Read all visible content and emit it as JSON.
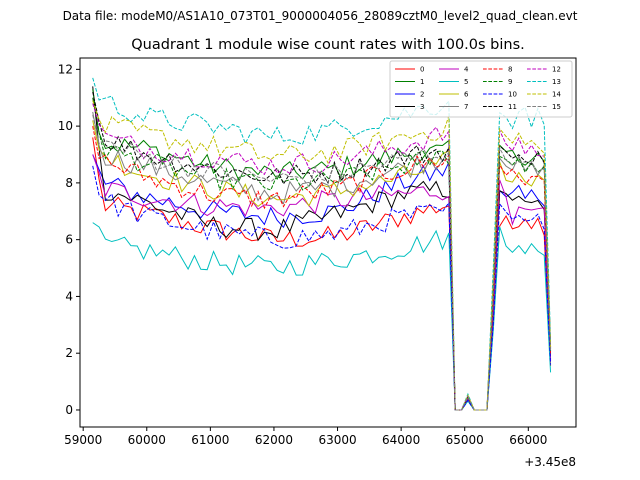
{
  "suptitle": "Data file: modeM0/AS1A10_073T01_9000004056_28089cztM0_level2_quad_clean.evt",
  "chart_data": {
    "type": "line",
    "title": "Quadrant 1 module wise count rates with 100.0s bins.",
    "xlabel": "",
    "ylabel": "",
    "x_offset": 345000000,
    "x_offset_label": "+3.45e8",
    "xlim": [
      58950,
      66750
    ],
    "ylim": [
      -0.6,
      12.4
    ],
    "xticks": [
      59000,
      60000,
      61000,
      62000,
      63000,
      64000,
      65000,
      66000
    ],
    "xtick_labels": [
      "59000",
      "60000",
      "61000",
      "62000",
      "63000",
      "64000",
      "65000",
      "66000"
    ],
    "yticks": [
      0,
      2,
      4,
      6,
      8,
      10,
      12
    ],
    "ytick_labels": [
      "0",
      "2",
      "4",
      "6",
      "8",
      "10",
      "12"
    ],
    "x_start": 59150,
    "x_step": 100,
    "n_points": 73,
    "legend_location": "upper right",
    "series": [
      {
        "name": "0",
        "color": "#ff0000",
        "style": "solid",
        "anchors": [
          [
            59150,
            9.6
          ],
          [
            59300,
            7.2
          ],
          [
            60000,
            6.9
          ],
          [
            61000,
            6.4
          ],
          [
            62000,
            6.0
          ],
          [
            63000,
            6.1
          ],
          [
            64000,
            6.8
          ],
          [
            64800,
            7.3
          ],
          [
            64900,
            7.0
          ]
        ],
        "after": [
          6.5,
          6.7,
          6.4,
          6.6,
          6.8,
          6.5,
          6.7,
          6.3,
          6.2
        ]
      },
      {
        "name": "1",
        "color": "#008000",
        "style": "solid",
        "anchors": [
          [
            59150,
            11.0
          ],
          [
            59300,
            9.4
          ],
          [
            60000,
            9.2
          ],
          [
            61000,
            8.6
          ],
          [
            62000,
            8.3
          ],
          [
            63000,
            8.5
          ],
          [
            64000,
            9.0
          ],
          [
            64800,
            9.1
          ],
          [
            64900,
            9.4
          ]
        ],
        "after": [
          9.3,
          9.0,
          9.2,
          8.9,
          8.7,
          8.8,
          9.0,
          8.7,
          8.8
        ]
      },
      {
        "name": "2",
        "color": "#0000ff",
        "style": "solid",
        "anchors": [
          [
            59150,
            9.0
          ],
          [
            59300,
            8.0
          ],
          [
            60000,
            7.5
          ],
          [
            61000,
            7.0
          ],
          [
            62000,
            6.8
          ],
          [
            63000,
            7.0
          ],
          [
            64000,
            8.0
          ],
          [
            64800,
            8.5
          ],
          [
            64900,
            8.0
          ]
        ],
        "after": [
          7.8,
          7.5,
          7.6,
          7.9,
          7.4,
          7.7,
          7.5,
          7.3,
          7.2
        ]
      },
      {
        "name": "3",
        "color": "#000000",
        "style": "solid",
        "anchors": [
          [
            59150,
            11.4
          ],
          [
            59300,
            7.8
          ],
          [
            60000,
            7.3
          ],
          [
            61000,
            6.5
          ],
          [
            62000,
            6.3
          ],
          [
            63000,
            6.9
          ],
          [
            64000,
            7.6
          ],
          [
            64800,
            7.8
          ],
          [
            64900,
            8.0
          ]
        ],
        "after": [
          7.8,
          7.5,
          7.3,
          7.6,
          7.4,
          7.2,
          7.3,
          7.0,
          7.0
        ]
      },
      {
        "name": "4",
        "color": "#bf00bf",
        "style": "solid",
        "anchors": [
          [
            59150,
            9.0
          ],
          [
            59300,
            7.8
          ],
          [
            60000,
            7.5
          ],
          [
            61000,
            7.2
          ],
          [
            62000,
            7.1
          ],
          [
            63000,
            7.4
          ],
          [
            64000,
            7.6
          ],
          [
            64800,
            7.8
          ],
          [
            64900,
            8.0
          ]
        ],
        "after": [
          8.0,
          7.5,
          6.6,
          7.3,
          7.2,
          6.9,
          7.0,
          7.1,
          6.9
        ]
      },
      {
        "name": "5",
        "color": "#00bfbf",
        "style": "solid",
        "anchors": [
          [
            59150,
            6.6
          ],
          [
            59300,
            5.8
          ],
          [
            60000,
            5.6
          ],
          [
            61000,
            5.2
          ],
          [
            62000,
            5.0
          ],
          [
            63000,
            5.3
          ],
          [
            64000,
            5.7
          ],
          [
            64800,
            6.1
          ],
          [
            64900,
            6.3
          ]
        ],
        "after": [
          6.4,
          5.8,
          5.7,
          5.9,
          5.6,
          5.8,
          5.5,
          5.4,
          5.3
        ]
      },
      {
        "name": "6",
        "color": "#bfbf00",
        "style": "solid",
        "anchors": [
          [
            59150,
            10.2
          ],
          [
            59300,
            9.0
          ],
          [
            60000,
            8.3
          ],
          [
            61000,
            7.8
          ],
          [
            62000,
            7.4
          ],
          [
            63000,
            7.7
          ],
          [
            64000,
            8.2
          ],
          [
            64800,
            8.8
          ],
          [
            64900,
            9.0
          ]
        ],
        "after": [
          8.6,
          8.2,
          8.0,
          8.3,
          8.1,
          7.9,
          8.4,
          8.0,
          7.9
        ]
      },
      {
        "name": "7",
        "color": "#808080",
        "style": "solid",
        "anchors": [
          [
            59150,
            10.5
          ],
          [
            59300,
            9.0
          ],
          [
            60000,
            8.6
          ],
          [
            61000,
            8.0
          ],
          [
            62000,
            7.6
          ],
          [
            63000,
            7.9
          ],
          [
            64000,
            8.5
          ],
          [
            64800,
            9.0
          ],
          [
            64900,
            9.3
          ]
        ],
        "after": [
          9.0,
          8.7,
          8.5,
          8.8,
          8.4,
          8.6,
          8.3,
          8.5,
          8.2
        ]
      },
      {
        "name": "8",
        "color": "#ff0000",
        "style": "dashed",
        "anchors": [
          [
            59150,
            10.0
          ],
          [
            59300,
            8.8
          ],
          [
            60000,
            8.2
          ],
          [
            61000,
            7.6
          ],
          [
            62000,
            7.4
          ],
          [
            63000,
            7.8
          ],
          [
            64000,
            8.5
          ],
          [
            64800,
            8.9
          ],
          [
            64900,
            9.0
          ]
        ],
        "after": [
          8.6,
          8.3,
          8.5,
          8.2,
          8.0,
          8.3,
          8.1,
          8.0,
          7.9
        ]
      },
      {
        "name": "9",
        "color": "#008000",
        "style": "dashed",
        "anchors": [
          [
            59150,
            11.3
          ],
          [
            59300,
            9.2
          ],
          [
            60000,
            8.7
          ],
          [
            61000,
            8.2
          ],
          [
            62000,
            7.9
          ],
          [
            63000,
            8.1
          ],
          [
            64000,
            8.6
          ],
          [
            64800,
            9.0
          ],
          [
            64900,
            9.2
          ]
        ],
        "after": [
          9.0,
          8.8,
          8.6,
          8.9,
          8.5,
          8.7,
          8.4,
          8.6,
          8.3
        ]
      },
      {
        "name": "10",
        "color": "#0000ff",
        "style": "dashed",
        "anchors": [
          [
            59150,
            8.6
          ],
          [
            59300,
            7.4
          ],
          [
            60000,
            6.8
          ],
          [
            61000,
            6.3
          ],
          [
            62000,
            6.0
          ],
          [
            63000,
            6.2
          ],
          [
            64000,
            6.8
          ],
          [
            64800,
            7.0
          ],
          [
            64900,
            6.8
          ]
        ],
        "after": [
          7.2,
          6.9,
          6.6,
          7.0,
          6.8,
          6.7,
          6.9,
          6.5,
          6.4
        ]
      },
      {
        "name": "11",
        "color": "#000000",
        "style": "dashed",
        "anchors": [
          [
            59150,
            11.2
          ],
          [
            59300,
            9.6
          ],
          [
            60000,
            9.0
          ],
          [
            61000,
            8.5
          ],
          [
            62000,
            8.2
          ],
          [
            63000,
            8.4
          ],
          [
            64000,
            8.9
          ],
          [
            64800,
            9.2
          ],
          [
            64900,
            9.4
          ]
        ],
        "after": [
          9.3,
          9.0,
          8.8,
          9.1,
          8.9,
          8.7,
          9.0,
          8.8,
          8.6
        ]
      },
      {
        "name": "12",
        "color": "#bf00bf",
        "style": "dashed",
        "anchors": [
          [
            59150,
            10.8
          ],
          [
            59300,
            9.6
          ],
          [
            60000,
            9.2
          ],
          [
            61000,
            8.9
          ],
          [
            62000,
            8.6
          ],
          [
            63000,
            8.8
          ],
          [
            64000,
            9.3
          ],
          [
            64800,
            9.8
          ],
          [
            64900,
            10.0
          ]
        ],
        "after": [
          9.7,
          9.4,
          9.2,
          9.5,
          9.1,
          9.3,
          9.0,
          8.9,
          8.8
        ]
      },
      {
        "name": "13",
        "color": "#00bfbf",
        "style": "dashed",
        "anchors": [
          [
            59150,
            11.7
          ],
          [
            59300,
            10.9
          ],
          [
            60000,
            10.3
          ],
          [
            61000,
            10.0
          ],
          [
            62000,
            9.6
          ],
          [
            63000,
            9.9
          ],
          [
            64000,
            10.4
          ],
          [
            64800,
            10.9
          ],
          [
            64900,
            11.2
          ]
        ],
        "after": [
          10.6,
          10.2,
          10.0,
          10.4,
          10.8,
          10.1,
          10.5,
          10.0,
          9.6
        ]
      },
      {
        "name": "14",
        "color": "#bfbf00",
        "style": "dashed",
        "anchors": [
          [
            59150,
            10.9
          ],
          [
            59300,
            10.0
          ],
          [
            60000,
            9.7
          ],
          [
            61000,
            9.3
          ],
          [
            62000,
            8.9
          ],
          [
            63000,
            9.1
          ],
          [
            64000,
            9.6
          ],
          [
            64800,
            10.0
          ],
          [
            64900,
            10.3
          ]
        ],
        "after": [
          10.0,
          9.6,
          9.4,
          9.7,
          9.3,
          9.5,
          9.2,
          9.0,
          8.9
        ]
      },
      {
        "name": "15",
        "color": "#808080",
        "style": "dashed",
        "anchors": [
          [
            59150,
            10.4
          ],
          [
            59300,
            9.4
          ],
          [
            60000,
            8.9
          ],
          [
            61000,
            8.4
          ],
          [
            62000,
            8.1
          ],
          [
            63000,
            8.3
          ],
          [
            64000,
            8.8
          ],
          [
            64800,
            9.2
          ],
          [
            64900,
            9.4
          ]
        ],
        "after": [
          9.1,
          8.8,
          8.7,
          8.9,
          8.6,
          8.8,
          8.5,
          8.4,
          8.3
        ]
      }
    ]
  }
}
